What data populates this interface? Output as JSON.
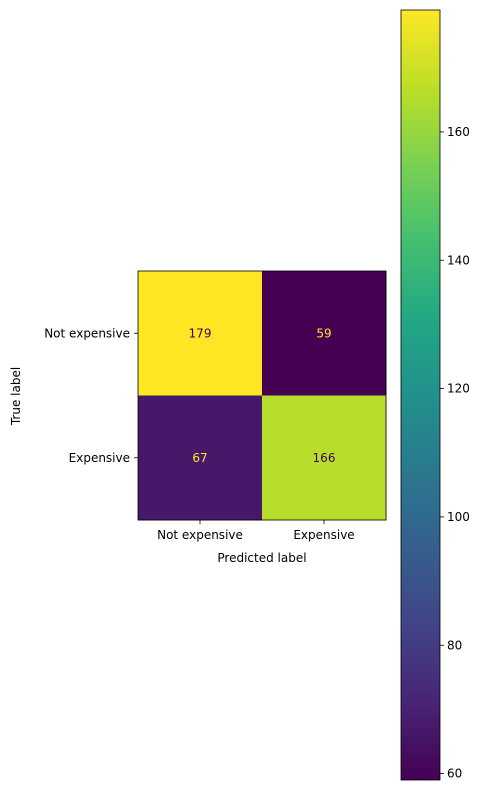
{
  "chart_data": {
    "type": "heatmap",
    "title": "",
    "xlabel": "Predicted label",
    "ylabel": "True label",
    "x_categories": [
      "Not expensive",
      "Expensive"
    ],
    "y_categories": [
      "Not expensive",
      "Expensive"
    ],
    "matrix": [
      [
        179,
        59
      ],
      [
        67,
        166
      ]
    ],
    "colormap": "viridis",
    "colorbar": {
      "min": 59,
      "max": 179,
      "ticks": [
        60,
        80,
        100,
        120,
        140,
        160
      ]
    },
    "text_colors": {
      "on_dark": "#fde725",
      "on_light": "#440154"
    },
    "grid": false
  }
}
